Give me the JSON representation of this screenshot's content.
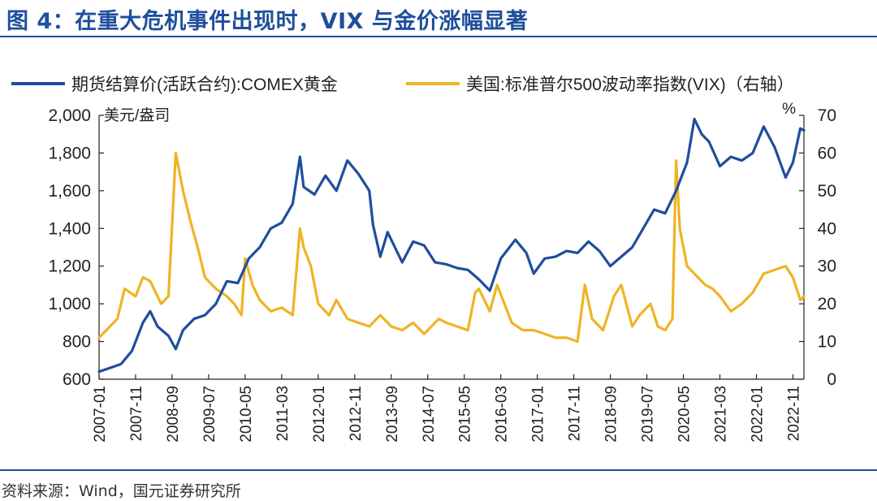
{
  "figure": {
    "title": "图 4：在重大危机事件出现时，VIX 与金价涨幅显著",
    "source": "资料来源：Wind，国元证券研究所"
  },
  "chart_data": {
    "type": "line",
    "legend": [
      {
        "name": "期货结算价(活跃合约):COMEX黄金",
        "color": "#1f4e9c"
      },
      {
        "name": "美国:标准普尔500波动率指数(VIX)（右轴）",
        "color": "#f0b323"
      }
    ],
    "legend_placement": "top",
    "x_tick_labels": [
      "2007-01",
      "2007-11",
      "2008-09",
      "2009-07",
      "2010-05",
      "2011-03",
      "2012-01",
      "2012-11",
      "2013-09",
      "2014-07",
      "2015-05",
      "2016-03",
      "2017-01",
      "2017-11",
      "2018-09",
      "2019-07",
      "2020-05",
      "2021-03",
      "2022-01",
      "2022-11"
    ],
    "x_range": [
      "2007-01",
      "2023-02"
    ],
    "y_left": {
      "unit_label": "美元/盎司",
      "min": 600,
      "max": 2000,
      "ticks": [
        "600",
        "800",
        "1,000",
        "1,200",
        "1,400",
        "1,600",
        "1,800",
        "2,000"
      ],
      "tick_values": [
        600,
        800,
        1000,
        1200,
        1400,
        1600,
        1800,
        2000
      ]
    },
    "y_right": {
      "unit_label": "%",
      "min": 0,
      "max": 70,
      "ticks": [
        "0",
        "10",
        "20",
        "30",
        "40",
        "50",
        "60",
        "70"
      ],
      "tick_values": [
        0,
        10,
        20,
        30,
        40,
        50,
        60,
        70
      ]
    },
    "grid": false,
    "series": [
      {
        "name": "期货结算价(活跃合约):COMEX黄金",
        "axis": "left",
        "color": "#1f4e9c",
        "x": [
          "2007-01",
          "2007-04",
          "2007-07",
          "2007-10",
          "2008-01",
          "2008-03",
          "2008-05",
          "2008-08",
          "2008-10",
          "2008-12",
          "2009-03",
          "2009-06",
          "2009-09",
          "2009-12",
          "2010-03",
          "2010-06",
          "2010-09",
          "2010-12",
          "2011-03",
          "2011-06",
          "2011-08",
          "2011-09",
          "2011-12",
          "2012-03",
          "2012-06",
          "2012-09",
          "2012-12",
          "2013-03",
          "2013-04",
          "2013-06",
          "2013-08",
          "2013-12",
          "2014-03",
          "2014-06",
          "2014-09",
          "2014-12",
          "2015-03",
          "2015-06",
          "2015-09",
          "2015-12",
          "2016-03",
          "2016-07",
          "2016-10",
          "2016-12",
          "2017-03",
          "2017-06",
          "2017-09",
          "2017-12",
          "2018-03",
          "2018-06",
          "2018-09",
          "2018-12",
          "2019-03",
          "2019-06",
          "2019-09",
          "2019-12",
          "2020-03",
          "2020-06",
          "2020-08",
          "2020-10",
          "2020-12",
          "2021-03",
          "2021-06",
          "2021-09",
          "2021-12",
          "2022-03",
          "2022-06",
          "2022-09",
          "2022-11",
          "2023-01",
          "2023-02"
        ],
        "y": [
          640,
          660,
          680,
          750,
          900,
          960,
          880,
          830,
          760,
          860,
          920,
          940,
          1000,
          1120,
          1110,
          1240,
          1300,
          1400,
          1430,
          1530,
          1780,
          1620,
          1580,
          1680,
          1600,
          1760,
          1690,
          1600,
          1420,
          1250,
          1380,
          1220,
          1330,
          1310,
          1220,
          1210,
          1190,
          1180,
          1130,
          1070,
          1240,
          1340,
          1270,
          1160,
          1240,
          1250,
          1280,
          1270,
          1330,
          1280,
          1200,
          1250,
          1300,
          1400,
          1500,
          1480,
          1600,
          1750,
          1980,
          1900,
          1860,
          1730,
          1780,
          1760,
          1800,
          1940,
          1830,
          1670,
          1750,
          1930,
          1920
        ]
      },
      {
        "name": "美国:标准普尔500波动率指数(VIX)（右轴）",
        "axis": "right",
        "color": "#f0b323",
        "x": [
          "2007-01",
          "2007-03",
          "2007-06",
          "2007-08",
          "2007-11",
          "2008-01",
          "2008-03",
          "2008-06",
          "2008-08",
          "2008-10",
          "2008-11",
          "2008-12",
          "2009-02",
          "2009-04",
          "2009-06",
          "2009-09",
          "2009-12",
          "2010-02",
          "2010-04",
          "2010-05",
          "2010-07",
          "2010-09",
          "2010-12",
          "2011-03",
          "2011-06",
          "2011-08",
          "2011-09",
          "2011-11",
          "2012-01",
          "2012-04",
          "2012-06",
          "2012-09",
          "2012-12",
          "2013-03",
          "2013-06",
          "2013-09",
          "2013-12",
          "2014-03",
          "2014-06",
          "2014-10",
          "2014-12",
          "2015-03",
          "2015-06",
          "2015-08",
          "2015-09",
          "2015-12",
          "2016-02",
          "2016-06",
          "2016-09",
          "2016-12",
          "2017-03",
          "2017-06",
          "2017-09",
          "2017-12",
          "2018-02",
          "2018-04",
          "2018-07",
          "2018-10",
          "2018-12",
          "2019-03",
          "2019-05",
          "2019-08",
          "2019-10",
          "2019-12",
          "2020-02",
          "2020-03",
          "2020-04",
          "2020-06",
          "2020-09",
          "2020-11",
          "2021-01",
          "2021-03",
          "2021-06",
          "2021-09",
          "2021-12",
          "2022-03",
          "2022-06",
          "2022-09",
          "2022-11",
          "2023-01",
          "2023-02"
        ],
        "y": [
          11,
          13,
          16,
          24,
          22,
          27,
          26,
          20,
          22,
          60,
          55,
          50,
          42,
          35,
          27,
          24,
          22,
          20,
          17,
          32,
          25,
          21,
          18,
          19,
          17,
          40,
          35,
          30,
          20,
          17,
          21,
          16,
          15,
          14,
          17,
          14,
          13,
          15,
          12,
          16,
          15,
          14,
          13,
          23,
          24,
          18,
          25,
          15,
          13,
          13,
          12,
          11,
          11,
          10,
          25,
          16,
          13,
          22,
          25,
          14,
          17,
          20,
          14,
          13,
          16,
          58,
          40,
          30,
          27,
          25,
          24,
          22,
          18,
          20,
          23,
          28,
          29,
          30,
          27,
          21,
          22
        ]
      }
    ]
  }
}
